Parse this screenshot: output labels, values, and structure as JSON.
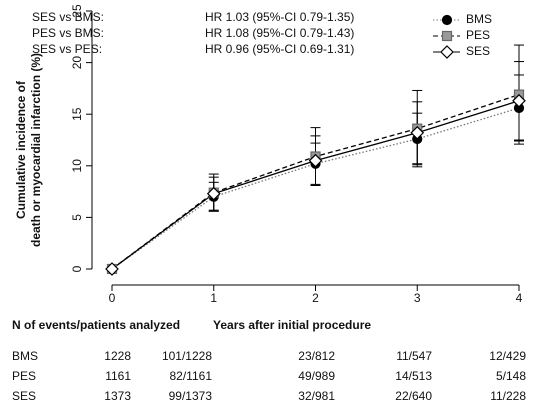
{
  "chart_data": {
    "type": "line",
    "ylabel": [
      "Cumulative incidence of",
      "death or myocardial infarction (%)"
    ],
    "xlabel": "Years after initial procedure",
    "x": [
      0,
      1,
      2,
      3,
      4
    ],
    "xlim": [
      0,
      4
    ],
    "xticks": [
      0,
      1,
      2,
      3,
      4
    ],
    "ylim": [
      0,
      25
    ],
    "yticks": [
      0,
      5,
      10,
      15,
      20,
      25
    ],
    "annotations": [
      [
        "SES vs BMS:",
        "HR 1.03 (95%-CI 0.79-1.35)"
      ],
      [
        "PES vs BMS:",
        "HR 1.08 (95%-CI 0.79-1.43)"
      ],
      [
        "SES vs PES:",
        "HR 0.96 (95%-CI 0.69-1.31)"
      ]
    ],
    "legend": "top-right",
    "series": [
      {
        "name": "BMS",
        "color": "#000000",
        "line": "dotted",
        "marker": "circle",
        "values": [
          0,
          7.0,
          10.2,
          12.6,
          15.6
        ],
        "errors": [
          0,
          1.4,
          2.0,
          2.5,
          3.2
        ]
      },
      {
        "name": "PES",
        "color": "#999999",
        "line": "dashed",
        "marker": "square",
        "values": [
          0,
          7.4,
          10.9,
          13.6,
          16.9
        ],
        "errors": [
          0,
          1.8,
          2.8,
          3.7,
          4.8
        ]
      },
      {
        "name": "SES",
        "color": "#ffffff",
        "line": "solid",
        "marker": "diamond",
        "values": [
          0,
          7.3,
          10.5,
          13.2,
          16.3
        ],
        "errors": [
          0,
          1.6,
          2.4,
          3.0,
          3.8
        ]
      }
    ]
  },
  "table": {
    "title": "N of events/patients analyzed",
    "rows": [
      {
        "label": "BMS",
        "cells": [
          "1228",
          "101/1228",
          "23/812",
          "11/547",
          "12/429"
        ]
      },
      {
        "label": "PES",
        "cells": [
          "1161",
          "82/1161",
          "49/989",
          "14/513",
          "5/148"
        ]
      },
      {
        "label": "SES",
        "cells": [
          "1373",
          "99/1373",
          "32/981",
          "22/640",
          "11/228"
        ]
      }
    ]
  }
}
